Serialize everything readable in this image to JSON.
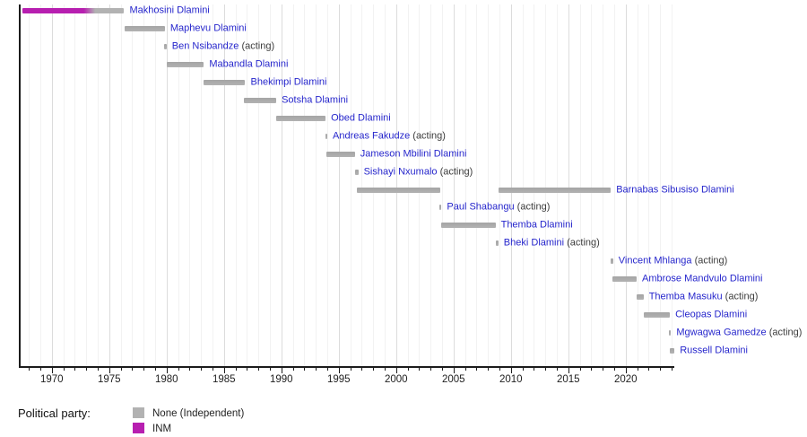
{
  "chart_data": {
    "type": "bar",
    "subtype": "gantt-timeline",
    "title": "",
    "xlabel": "",
    "ylabel": "",
    "grid": "vertical, every year (faint), every 5 years (darker)",
    "x_axis": {
      "min": 1967.2,
      "max": 2024.2,
      "minor_tick_interval": 1,
      "major_tick_interval": 5,
      "major_tick_labels": [
        "1970",
        "1975",
        "1980",
        "1985",
        "1990",
        "1995",
        "2000",
        "2005",
        "2010",
        "2015",
        "2020"
      ],
      "major_tick_years": [
        1970,
        1975,
        1980,
        1985,
        1990,
        1995,
        2000,
        2005,
        2010,
        2015,
        2020
      ]
    },
    "colors": {
      "none_party": "#b2b2b2",
      "inm": "#b71fb0",
      "name_link": "#2626cc",
      "acting_text": "#3c3c3c",
      "axis": "#1c1c1c"
    },
    "acting_suffix": "(acting)",
    "legend": {
      "title": "Political party:",
      "entries": [
        {
          "label": "None (Independent)",
          "color": "#b2b2b2"
        },
        {
          "label": "INM",
          "color": "#b71fb0"
        }
      ]
    },
    "rows": [
      {
        "name": "Makhosini Dlamini",
        "acting": false,
        "segments": [
          {
            "start": 1967.45,
            "end": 1976.3,
            "fill": "inm_to_none",
            "inm_until": 1972.8,
            "blend_until": 1973.8
          }
        ]
      },
      {
        "name": "Maphevu Dlamini",
        "acting": false,
        "segments": [
          {
            "start": 1976.35,
            "end": 1979.85,
            "fill": "none"
          }
        ]
      },
      {
        "name": "Ben Nsibandze",
        "acting": true,
        "segments": [
          {
            "start": 1979.75,
            "end": 1980.0,
            "fill": "none"
          }
        ]
      },
      {
        "name": "Mabandla Dlamini",
        "acting": false,
        "segments": [
          {
            "start": 1980.0,
            "end": 1983.25,
            "fill": "none"
          }
        ]
      },
      {
        "name": "Bhekimpi Dlamini",
        "acting": false,
        "segments": [
          {
            "start": 1983.25,
            "end": 1986.85,
            "fill": "none"
          }
        ]
      },
      {
        "name": "Sotsha Dlamini",
        "acting": false,
        "segments": [
          {
            "start": 1986.7,
            "end": 1989.55,
            "fill": "none"
          }
        ]
      },
      {
        "name": "Obed Dlamini",
        "acting": false,
        "segments": [
          {
            "start": 1989.55,
            "end": 1993.85,
            "fill": "none"
          }
        ]
      },
      {
        "name": "Andreas Fakudze",
        "acting": true,
        "segments": [
          {
            "start": 1993.8,
            "end": 1994.0,
            "fill": "none"
          }
        ]
      },
      {
        "name": "Jameson Mbilini Dlamini",
        "acting": false,
        "segments": [
          {
            "start": 1993.9,
            "end": 1996.4,
            "fill": "none"
          }
        ]
      },
      {
        "name": "Sishayi Nxumalo",
        "acting": true,
        "segments": [
          {
            "start": 1996.4,
            "end": 1996.7,
            "fill": "none"
          }
        ]
      },
      {
        "name": "Barnabas Sibusiso Dlamini",
        "acting": false,
        "segments": [
          {
            "start": 1996.6,
            "end": 2003.85,
            "fill": "none"
          },
          {
            "start": 2008.95,
            "end": 2018.7,
            "fill": "none"
          }
        ]
      },
      {
        "name": "Paul Shabangu",
        "acting": true,
        "segments": [
          {
            "start": 2003.75,
            "end": 2003.95,
            "fill": "none"
          }
        ]
      },
      {
        "name": "Themba Dlamini",
        "acting": false,
        "segments": [
          {
            "start": 2003.9,
            "end": 2008.65,
            "fill": "none"
          }
        ]
      },
      {
        "name": "Bheki Dlamini",
        "acting": true,
        "segments": [
          {
            "start": 2008.65,
            "end": 2008.9,
            "fill": "none"
          }
        ]
      },
      {
        "name": "Vincent Mhlanga",
        "acting": true,
        "segments": [
          {
            "start": 2018.7,
            "end": 2018.9,
            "fill": "none"
          }
        ]
      },
      {
        "name": "Ambrose Mandvulo Dlamini",
        "acting": false,
        "segments": [
          {
            "start": 2018.85,
            "end": 2020.95,
            "fill": "none"
          }
        ]
      },
      {
        "name": "Themba Masuku",
        "acting": true,
        "segments": [
          {
            "start": 2020.95,
            "end": 2021.55,
            "fill": "none"
          }
        ]
      },
      {
        "name": "Cleopas Dlamini",
        "acting": false,
        "segments": [
          {
            "start": 2021.55,
            "end": 2023.85,
            "fill": "none"
          }
        ]
      },
      {
        "name": "Mgwagwa Gamedze",
        "acting": true,
        "segments": [
          {
            "start": 2023.75,
            "end": 2023.95,
            "fill": "none"
          }
        ]
      },
      {
        "name": "Russell Dlamini",
        "acting": false,
        "segments": [
          {
            "start": 2023.85,
            "end": 2024.25,
            "fill": "none"
          }
        ]
      }
    ]
  }
}
